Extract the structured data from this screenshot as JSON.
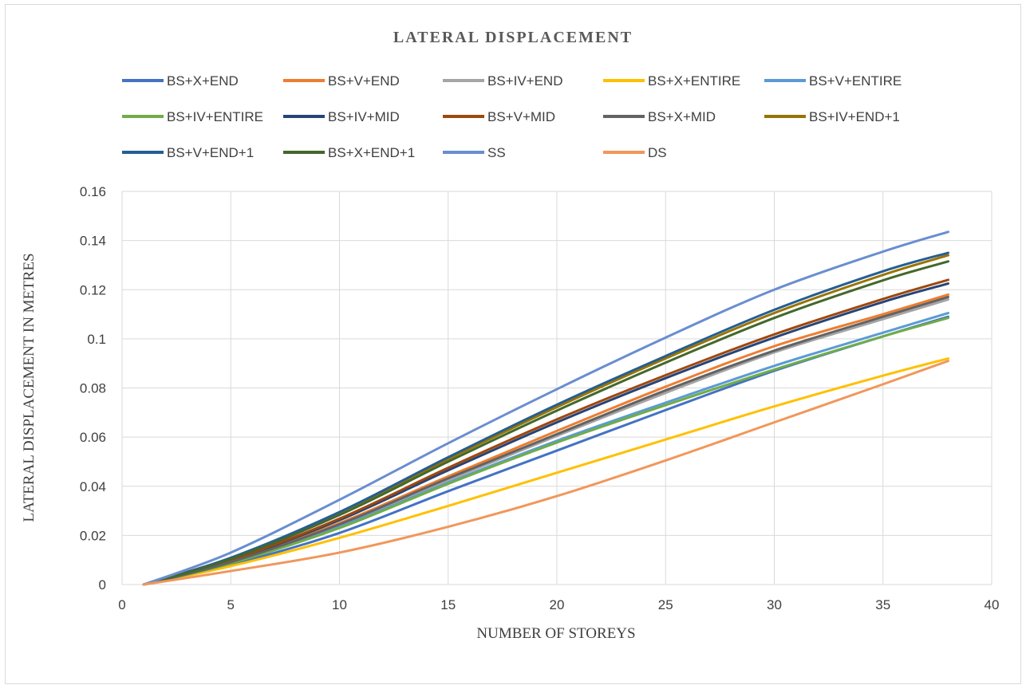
{
  "chart_data": {
    "type": "line",
    "title": "LATERAL DISPLACEMENT",
    "xlabel": "NUMBER OF STOREYS",
    "ylabel": "LATERAL DISPLACEMENT IN METRES",
    "xlim": [
      0,
      40
    ],
    "ylim": [
      0,
      0.16
    ],
    "x_ticks": [
      "0",
      "5",
      "10",
      "15",
      "20",
      "25",
      "30",
      "35",
      "40"
    ],
    "y_ticks": [
      "0",
      "0.02",
      "0.04",
      "0.06",
      "0.08",
      "0.1",
      "0.12",
      "0.14",
      "0.16"
    ],
    "grid": true,
    "legend_position": "top",
    "x": [
      1,
      5,
      10,
      15,
      20,
      25,
      30,
      35,
      38
    ],
    "series": [
      {
        "name": "BS+X+END",
        "color": "#4472C4",
        "values": [
          0,
          0.008,
          0.021,
          0.038,
          0.0545,
          0.071,
          0.087,
          0.101,
          0.109
        ]
      },
      {
        "name": "BS+V+END",
        "color": "#ED7D31",
        "values": [
          0,
          0.0093,
          0.025,
          0.044,
          0.0625,
          0.0805,
          0.097,
          0.11,
          0.118
        ]
      },
      {
        "name": "BS+IV+END",
        "color": "#A5A5A5",
        "values": [
          0,
          0.009,
          0.024,
          0.0425,
          0.0605,
          0.078,
          0.0945,
          0.108,
          0.116
        ]
      },
      {
        "name": "BS+X+ENTIRE",
        "color": "#FFC000",
        "values": [
          0,
          0.0075,
          0.019,
          0.032,
          0.0455,
          0.059,
          0.0725,
          0.085,
          0.092
        ]
      },
      {
        "name": "BS+V+ENTIRE",
        "color": "#5B9BD5",
        "values": [
          0,
          0.0088,
          0.0235,
          0.0415,
          0.0585,
          0.074,
          0.089,
          0.1025,
          0.1105
        ]
      },
      {
        "name": "BS+IV+ENTIRE",
        "color": "#70AD47",
        "values": [
          0,
          0.0086,
          0.023,
          0.041,
          0.0578,
          0.073,
          0.0875,
          0.101,
          0.1085
        ]
      },
      {
        "name": "BS+IV+MID",
        "color": "#264478",
        "values": [
          0,
          0.0097,
          0.0262,
          0.0465,
          0.066,
          0.084,
          0.1005,
          0.115,
          0.1225
        ]
      },
      {
        "name": "BS+V+MID",
        "color": "#9E480E",
        "values": [
          0,
          0.0099,
          0.0268,
          0.0475,
          0.0672,
          0.0852,
          0.1018,
          0.1162,
          0.124
        ]
      },
      {
        "name": "BS+X+MID",
        "color": "#636363",
        "values": [
          0,
          0.0091,
          0.0245,
          0.0432,
          0.0612,
          0.079,
          0.0952,
          0.109,
          0.117
        ]
      },
      {
        "name": "BS+IV+END+1",
        "color": "#997300",
        "values": [
          0,
          0.0107,
          0.029,
          0.051,
          0.0722,
          0.092,
          0.1105,
          0.126,
          0.134
        ]
      },
      {
        "name": "BS+V+END+1",
        "color": "#255E91",
        "values": [
          0,
          0.0109,
          0.0295,
          0.0518,
          0.0732,
          0.093,
          0.1118,
          0.1275,
          0.135
        ]
      },
      {
        "name": "BS+X+END+1",
        "color": "#43682B",
        "values": [
          0,
          0.0104,
          0.0283,
          0.05,
          0.0708,
          0.0903,
          0.1085,
          0.1238,
          0.1315
        ]
      },
      {
        "name": "SS",
        "color": "#698ED0",
        "values": [
          0,
          0.013,
          0.0345,
          0.0575,
          0.0795,
          0.1005,
          0.12,
          0.1355,
          0.1435
        ]
      },
      {
        "name": "DS",
        "color": "#F1975A",
        "values": [
          0,
          0.0055,
          0.013,
          0.0235,
          0.036,
          0.0505,
          0.066,
          0.0815,
          0.091
        ]
      }
    ]
  }
}
